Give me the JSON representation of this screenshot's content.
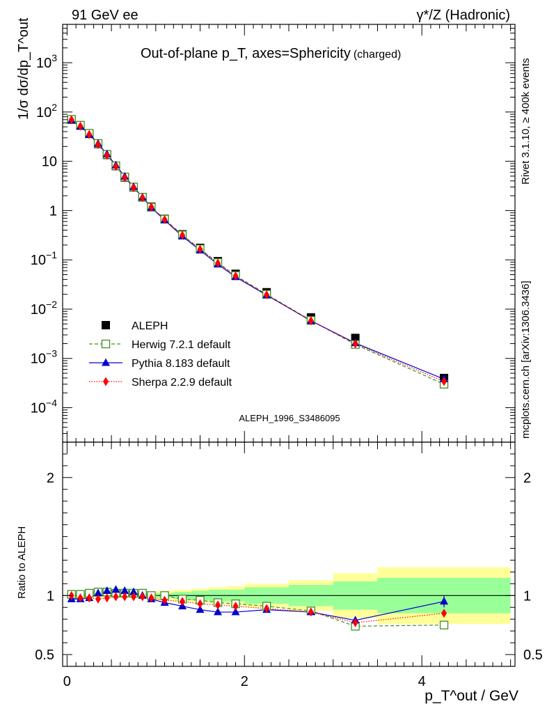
{
  "header": {
    "left": "91 GeV ee",
    "right": "γ*/Z (Hadronic)",
    "title": "Out-of-plane p_T, axes=Sphericity",
    "title_suffix": "(charged)",
    "analysis_id": "ALEPH_1996_S3486095"
  },
  "side_labels": {
    "rivet": "Rivet 3.1.10, ≥ 400k events",
    "mcplots": "mcplots.cern.ch [arXiv:1306.3436]"
  },
  "axes": {
    "main_ylabel": "1/σ dσ/dp_T^out",
    "ratio_ylabel": "Ratio to ALEPH",
    "xlabel": "p_T^out / GeV"
  },
  "colors": {
    "data": "#000000",
    "herwig": "#3f8f1f",
    "pythia": "#0000cc",
    "sherpa": "#ff0000",
    "band_outer": "#ffff99",
    "band_inner": "#99ff99"
  },
  "chart_data": [
    {
      "type": "scatter",
      "panel": "main",
      "yscale": "log",
      "xlim": [
        -0.05,
        5.05
      ],
      "ylim": [
        2e-05,
        6000
      ],
      "x": [
        0.05,
        0.15,
        0.25,
        0.35,
        0.45,
        0.55,
        0.65,
        0.75,
        0.85,
        0.95,
        1.1,
        1.3,
        1.5,
        1.7,
        1.9,
        2.25,
        2.75,
        3.25,
        4.25
      ],
      "series": [
        {
          "name": "ALEPH",
          "values": [
            70,
            53,
            36,
            22.5,
            13.5,
            8.0,
            4.7,
            2.95,
            1.85,
            1.2,
            0.68,
            0.33,
            0.175,
            0.094,
            0.052,
            0.022,
            0.0068,
            0.0026,
            0.0004
          ]
        },
        {
          "name": "Herwig 7.2.1 default",
          "values": [
            71,
            54,
            37,
            23.0,
            13.8,
            8.1,
            4.8,
            3.0,
            1.87,
            1.17,
            0.67,
            0.32,
            0.167,
            0.088,
            0.048,
            0.02,
            0.0059,
            0.00192,
            0.0003
          ]
        },
        {
          "name": "Pythia 8.183 default",
          "values": [
            68,
            51,
            35,
            22.8,
            14.0,
            8.3,
            4.9,
            3.03,
            1.86,
            1.15,
            0.64,
            0.3,
            0.156,
            0.081,
            0.045,
            0.0192,
            0.0058,
            0.00205,
            0.00038
          ]
        },
        {
          "name": "Sherpa 2.2.9 default",
          "values": [
            70,
            51.5,
            35,
            21.8,
            13.2,
            7.85,
            4.62,
            2.92,
            1.83,
            1.18,
            0.655,
            0.315,
            0.163,
            0.086,
            0.047,
            0.0195,
            0.0058,
            0.00198,
            0.00034
          ]
        }
      ],
      "yticks": [
        "10^-4",
        "10^-3",
        "10^-2",
        "10^-1",
        "1",
        "10",
        "10^2",
        "10^3"
      ]
    },
    {
      "type": "line",
      "panel": "ratio",
      "xlim": [
        -0.05,
        5.05
      ],
      "ylim": [
        0.4,
        2.3
      ],
      "xticks": [
        "0",
        "2",
        "4"
      ],
      "yticks": [
        "0.5",
        "1",
        "2"
      ],
      "x": [
        0.05,
        0.15,
        0.25,
        0.35,
        0.45,
        0.55,
        0.65,
        0.75,
        0.85,
        0.95,
        1.1,
        1.3,
        1.5,
        1.7,
        1.9,
        2.25,
        2.75,
        3.25,
        4.25
      ],
      "series": [
        {
          "name": "Herwig 7.2.1 default",
          "values": [
            1.01,
            1.01,
            1.02,
            1.03,
            1.03,
            1.02,
            1.02,
            1.02,
            1.02,
            1.0,
            1.0,
            0.97,
            0.96,
            0.94,
            0.93,
            0.91,
            0.87,
            0.74,
            0.75
          ]
        },
        {
          "name": "Pythia 8.183 default",
          "values": [
            0.97,
            0.97,
            0.98,
            1.02,
            1.04,
            1.05,
            1.04,
            1.03,
            1.0,
            0.97,
            0.94,
            0.91,
            0.88,
            0.86,
            0.86,
            0.88,
            0.86,
            0.79,
            0.95
          ]
        },
        {
          "name": "Sherpa 2.2.9 default",
          "values": [
            1.0,
            0.98,
            0.98,
            0.97,
            0.98,
            0.99,
            0.99,
            0.99,
            0.99,
            0.98,
            0.96,
            0.95,
            0.93,
            0.92,
            0.91,
            0.89,
            0.86,
            0.77,
            0.85
          ]
        }
      ],
      "bands": {
        "edges": [
          0,
          0.1,
          0.2,
          0.3,
          0.4,
          0.5,
          0.6,
          0.7,
          0.8,
          0.9,
          1.0,
          1.2,
          1.4,
          1.6,
          1.8,
          2.0,
          2.5,
          3.0,
          3.5,
          5.0
        ],
        "outer": [
          0.02,
          0.02,
          0.02,
          0.02,
          0.02,
          0.02,
          0.02,
          0.02,
          0.03,
          0.03,
          0.04,
          0.05,
          0.06,
          0.07,
          0.08,
          0.1,
          0.13,
          0.19,
          0.24
        ],
        "inner": [
          0.01,
          0.01,
          0.01,
          0.01,
          0.01,
          0.01,
          0.01,
          0.01,
          0.02,
          0.02,
          0.02,
          0.03,
          0.04,
          0.05,
          0.05,
          0.07,
          0.09,
          0.12,
          0.15
        ]
      }
    }
  ]
}
